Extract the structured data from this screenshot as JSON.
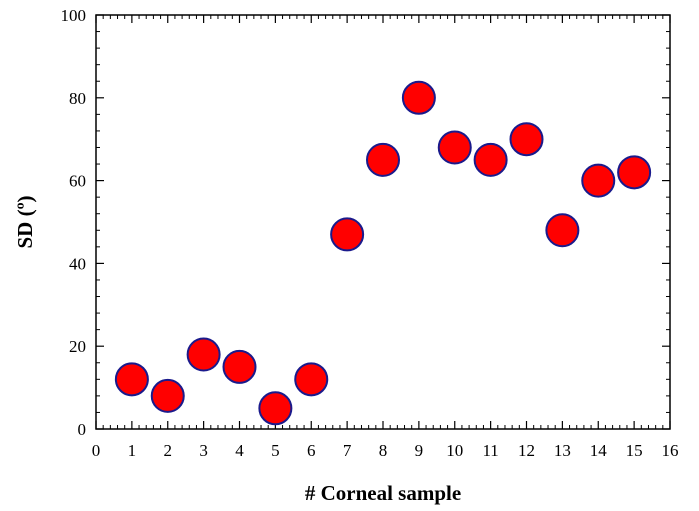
{
  "chart_data": {
    "type": "scatter",
    "title": "",
    "xlabel": "# Corneal sample",
    "ylabel": "SD (º)",
    "xlim": [
      0,
      16
    ],
    "ylim": [
      0,
      100
    ],
    "xticks": [
      0,
      1,
      2,
      3,
      4,
      5,
      6,
      7,
      8,
      9,
      10,
      11,
      12,
      13,
      14,
      15,
      16
    ],
    "yticks": [
      0,
      20,
      40,
      60,
      80,
      100
    ],
    "grid": false,
    "legend": "none",
    "marker": {
      "fill": "#ff0000",
      "edge": "#1a1a8c"
    },
    "series": [
      {
        "x": [
          1,
          2,
          3,
          4,
          5,
          6,
          7,
          8,
          9,
          10,
          11,
          12,
          13,
          14,
          15
        ],
        "y": [
          12,
          8,
          18,
          15,
          5,
          12,
          47,
          65,
          80,
          68,
          65,
          70,
          48,
          60,
          62
        ]
      }
    ]
  }
}
